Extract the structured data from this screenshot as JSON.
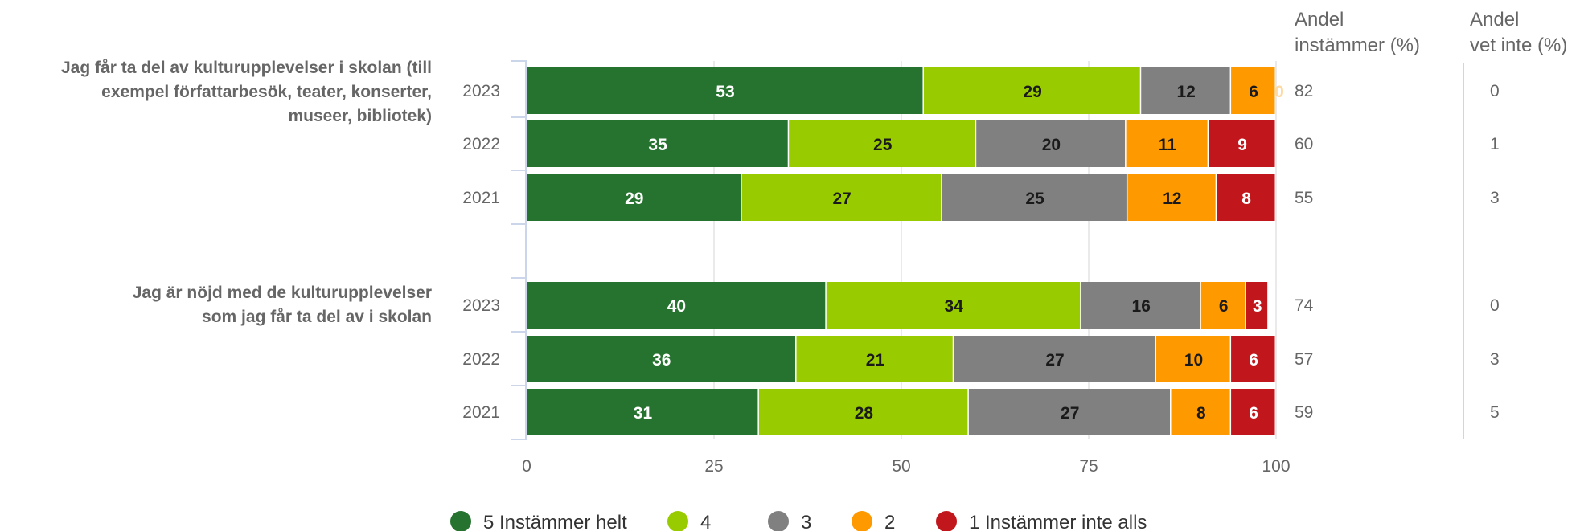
{
  "chart_data": {
    "type": "bar",
    "orientation": "horizontal",
    "stacked": true,
    "xlim": [
      0,
      100
    ],
    "xticks": [
      0,
      25,
      50,
      75,
      100
    ],
    "grid": true,
    "legend_position": "bottom",
    "questions": [
      {
        "label_lines": [
          "Jag får ta del av kulturupplevelser i skolan (till",
          "exempel författarbesök, teater, konserter,",
          "museer, bibliotek)"
        ],
        "rows": [
          {
            "year": "2023",
            "values": [
              53,
              29,
              12,
              6,
              0
            ],
            "andel_instammer": "82",
            "andel_vet_inte": "0"
          },
          {
            "year": "2022",
            "values": [
              35,
              25,
              20,
              11,
              9
            ],
            "andel_instammer": "60",
            "andel_vet_inte": "1"
          },
          {
            "year": "2021",
            "values": [
              29,
              27,
              25,
              12,
              8
            ],
            "andel_instammer": "55",
            "andel_vet_inte": "3"
          }
        ]
      },
      {
        "label_lines": [
          "Jag är nöjd med de kulturupplevelser",
          "som jag får ta del av i skolan"
        ],
        "rows": [
          {
            "year": "2023",
            "values": [
              40,
              34,
              16,
              6,
              3
            ],
            "andel_instammer": "74",
            "andel_vet_inte": "0"
          },
          {
            "year": "2022",
            "values": [
              36,
              21,
              27,
              10,
              6
            ],
            "andel_instammer": "57",
            "andel_vet_inte": "3"
          },
          {
            "year": "2021",
            "values": [
              31,
              28,
              27,
              8,
              6
            ],
            "andel_instammer": "59",
            "andel_vet_inte": "5"
          }
        ]
      }
    ],
    "series": [
      {
        "name": "5 Instämmer helt",
        "color": "#267330",
        "label_color": "#ffffff"
      },
      {
        "name": "4",
        "color": "#99cc00",
        "label_color": "#1a1a1a"
      },
      {
        "name": "3",
        "color": "#808080",
        "label_color": "#1a1a1a"
      },
      {
        "name": "2",
        "color": "#ff9900",
        "label_color": "#1a1a1a"
      },
      {
        "name": "1 Instämmer inte alls",
        "color": "#c0161c",
        "label_color": "#ffffff"
      }
    ],
    "columns": [
      {
        "lines": [
          "Andel",
          "instämmer (%)"
        ]
      },
      {
        "lines": [
          "Andel",
          "vet inte (%)"
        ]
      }
    ]
  }
}
